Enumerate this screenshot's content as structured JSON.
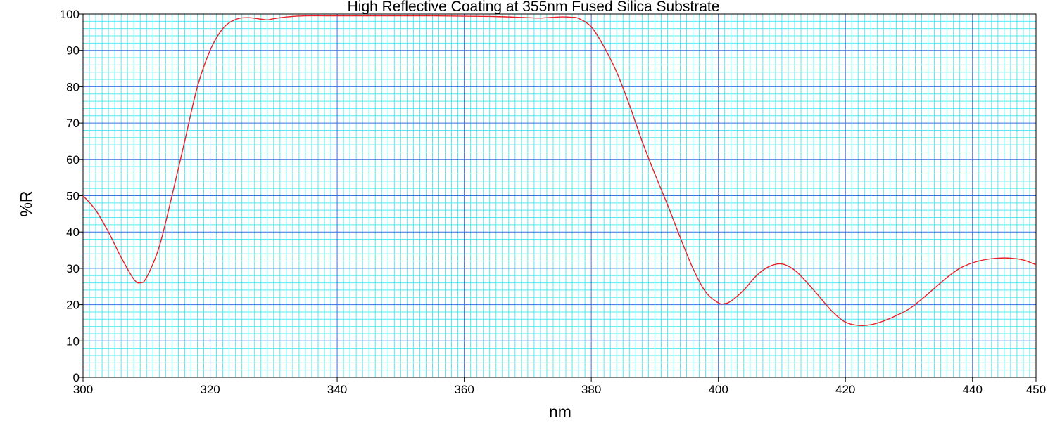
{
  "chart_data": {
    "type": "line",
    "title": "High Reflective Coating at 355nm Fused Silica Substrate",
    "xlabel": "nm",
    "ylabel": "%R",
    "xlim": [
      300,
      450
    ],
    "ylim": [
      0,
      100
    ],
    "x_ticks": [
      300,
      320,
      340,
      360,
      380,
      400,
      420,
      440,
      450
    ],
    "y_ticks": [
      0,
      10,
      20,
      30,
      40,
      50,
      60,
      70,
      80,
      90,
      100
    ],
    "grid": true,
    "legend": "none",
    "colors": {
      "line": "#e8202a",
      "grid_major": "#3b6fe0",
      "grid_minor": "#59e8ee",
      "axis": "#000000"
    },
    "series": [
      {
        "x": [
          300,
          302,
          304,
          306,
          308,
          309,
          310,
          312,
          314,
          316,
          318,
          320,
          322,
          324,
          326,
          328,
          329,
          330,
          332,
          335,
          340,
          345,
          350,
          355,
          360,
          365,
          370,
          372,
          375,
          377,
          378,
          380,
          382,
          384,
          386,
          388,
          390,
          392,
          394,
          396,
          398,
          400,
          401,
          402,
          404,
          406,
          408,
          410,
          412,
          414,
          416,
          418,
          420,
          422,
          424,
          426,
          428,
          430,
          432,
          434,
          436,
          438,
          440,
          442,
          444,
          446,
          448,
          450
        ],
        "y": [
          50,
          46,
          40,
          33,
          27,
          26,
          27.5,
          36,
          50,
          65,
          80,
          90,
          96,
          98.5,
          99,
          98.6,
          98.4,
          98.7,
          99.2,
          99.5,
          99.5,
          99.5,
          99.5,
          99.5,
          99.4,
          99.3,
          99,
          98.9,
          99.2,
          99.1,
          98.8,
          96.5,
          91,
          84,
          75,
          65,
          56,
          47.5,
          38.5,
          30,
          23.5,
          20.5,
          20.3,
          21,
          24,
          28,
          30.5,
          31.2,
          29.5,
          26,
          22,
          18,
          15.2,
          14.3,
          14.5,
          15.5,
          17,
          18.8,
          21.5,
          24.5,
          27.5,
          30,
          31.5,
          32.4,
          32.8,
          32.8,
          32.3,
          31
        ]
      }
    ]
  }
}
